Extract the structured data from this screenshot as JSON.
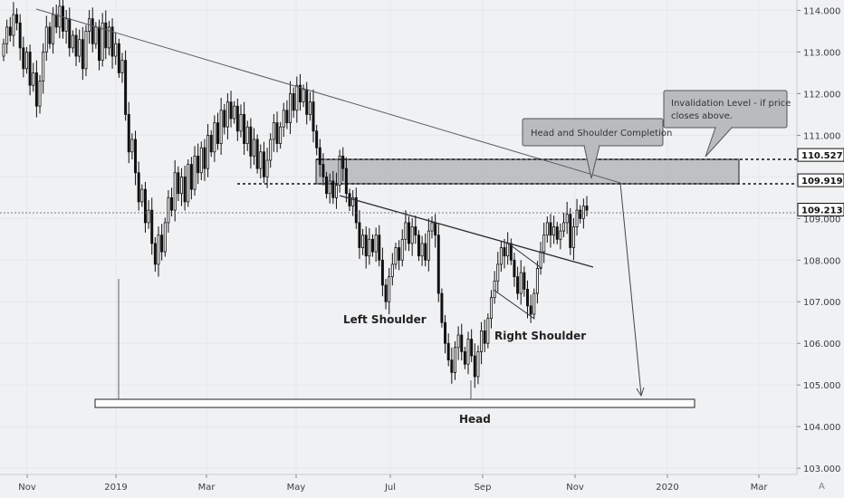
{
  "chart_data": {
    "type": "candlestick",
    "y_axis": {
      "ticks": [
        "114.000",
        "113.000",
        "112.000",
        "111.000",
        "110.000",
        "109.000",
        "108.000",
        "107.000",
        "106.000",
        "105.000",
        "104.000",
        "103.000"
      ],
      "tick_values": [
        114,
        113,
        112,
        111,
        110,
        109,
        108,
        107,
        106,
        105,
        104,
        103
      ],
      "range": [
        102.85,
        114.25
      ]
    },
    "x_axis": {
      "ticks": [
        "Nov",
        "2019",
        "Mar",
        "May",
        "Jul",
        "Sep",
        "Nov",
        "2020",
        "Mar"
      ]
    },
    "price_labels": [
      {
        "text": "110.527",
        "value": 110.527,
        "style": "dotted"
      },
      {
        "text": "109.919",
        "value": 109.919,
        "style": "dotted"
      },
      {
        "text": "109.213",
        "value": 109.213,
        "style": "current"
      }
    ],
    "patterns": {
      "left_shoulder": "Left Shoulder",
      "head": "Head",
      "right_shoulder": "Right Shoulder"
    },
    "callouts": {
      "completion": "Head and Shoulder Completion",
      "invalidation_line1": "Invalidation Level - if price",
      "invalidation_line2": "closes above."
    },
    "watermark": "A",
    "candles_close": [
      113.2,
      113.6,
      113.4,
      113.9,
      113.7,
      113.1,
      112.6,
      113.0,
      112.2,
      112.5,
      111.7,
      112.3,
      113.0,
      113.6,
      113.2,
      113.9,
      113.6,
      114.1,
      113.5,
      113.8,
      113.1,
      113.4,
      112.9,
      113.3,
      112.6,
      113.5,
      113.8,
      113.2,
      113.6,
      112.8,
      113.7,
      113.1,
      113.6,
      112.9,
      113.2,
      112.5,
      112.8,
      111.5,
      110.6,
      110.9,
      110.1,
      109.4,
      109.7,
      108.9,
      109.2,
      108.4,
      107.9,
      108.6,
      108.2,
      108.9,
      109.5,
      109.2,
      110.1,
      109.6,
      110.0,
      109.4,
      110.3,
      109.7,
      110.5,
      110.1,
      110.7,
      110.2,
      111.0,
      110.6,
      111.3,
      110.8,
      111.6,
      111.2,
      111.8,
      111.4,
      111.7,
      111.1,
      111.5,
      110.8,
      111.2,
      110.5,
      110.9,
      110.2,
      110.6,
      110.0,
      110.4,
      110.9,
      111.3,
      110.8,
      111.2,
      111.6,
      111.3,
      112.0,
      111.6,
      112.2,
      111.8,
      112.1,
      111.5,
      111.8,
      111.1,
      110.7,
      110.3,
      110.0,
      109.6,
      109.9,
      109.5,
      109.8,
      110.5,
      110.2,
      109.6,
      109.3,
      109.5,
      108.9,
      108.3,
      108.6,
      108.1,
      108.5,
      108.2,
      108.6,
      108.0,
      107.4,
      107.0,
      107.6,
      107.9,
      108.3,
      108.0,
      108.5,
      108.9,
      108.4,
      108.8,
      108.6,
      108.1,
      108.4,
      108.0,
      108.7,
      108.9,
      108.6,
      107.2,
      106.5,
      106.0,
      105.6,
      105.3,
      105.9,
      106.2,
      105.8,
      105.5,
      106.1,
      105.7,
      105.2,
      105.8,
      106.3,
      106.0,
      106.6,
      107.1,
      107.5,
      107.9,
      108.3,
      108.1,
      108.4,
      108.0,
      107.6,
      107.2,
      107.7,
      107.3,
      106.9,
      106.7,
      107.2,
      107.8,
      108.2,
      108.6,
      108.9,
      108.6,
      108.8,
      108.5,
      108.7,
      108.9,
      109.1,
      108.3,
      108.8,
      109.2,
      109.0,
      109.3,
      109.2
    ]
  }
}
